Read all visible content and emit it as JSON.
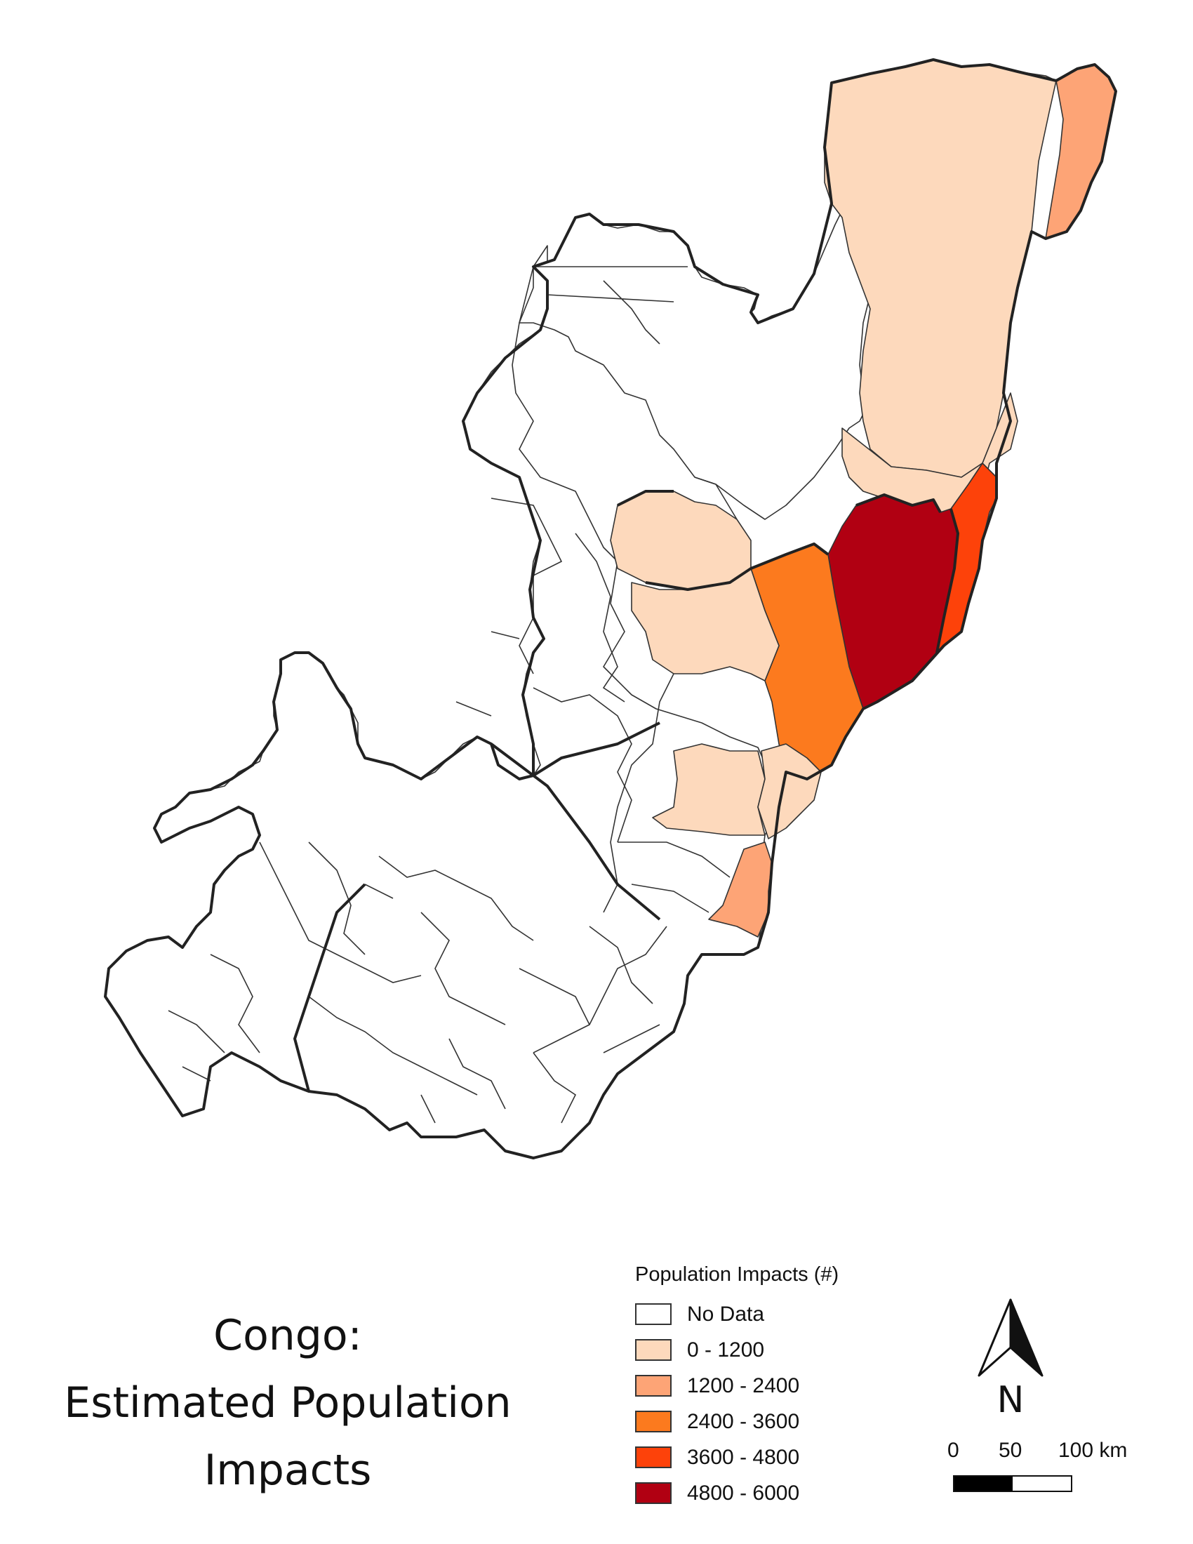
{
  "title": {
    "line1": "Congo:",
    "line2": "Estimated Population",
    "line3": "Impacts"
  },
  "legend": {
    "title": "Population Impacts (#)",
    "classes": [
      {
        "label": "No Data",
        "color": "#ffffff"
      },
      {
        "label": "0 - 1200",
        "color": "#fdd9bc"
      },
      {
        "label": "1200 - 2400",
        "color": "#fda476"
      },
      {
        "label": "2400 - 3600",
        "color": "#fc7a1e"
      },
      {
        "label": "3600 - 4800",
        "color": "#fd420a"
      },
      {
        "label": "4800 - 6000",
        "color": "#b10012"
      }
    ]
  },
  "north_arrow": {
    "label": "N"
  },
  "scale_bar": {
    "labels": [
      "0",
      "50",
      "100 km"
    ],
    "segment_colors": [
      "#000000",
      "#ffffff"
    ]
  },
  "map": {
    "country": "Congo",
    "region_classes": {
      "northeast_districts": "0 - 1200",
      "far_northeast_strip": "1200 - 2400",
      "east_central_a": "2400 - 3600",
      "east_central_b": "4800 - 6000",
      "east_river_strip": "3600 - 4800",
      "central_west_a": "0 - 1200",
      "central_west_b": "0 - 1200",
      "south_central_a": "0 - 1200",
      "south_central_b": "0 - 1200",
      "south_east_small": "1200 - 2400",
      "other_districts": "No Data"
    }
  }
}
